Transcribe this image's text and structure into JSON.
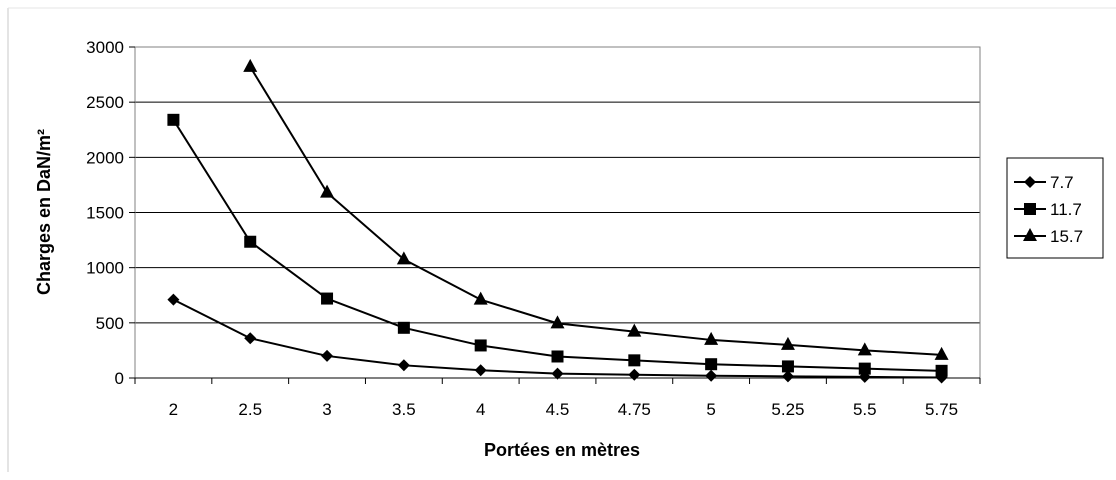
{
  "chart_data": {
    "type": "line",
    "title": "",
    "xlabel": "Portées en mètres",
    "ylabel": "Charges en DaN/m²",
    "categories": [
      "2",
      "2.5",
      "3",
      "3.5",
      "4",
      "4.5",
      "4.75",
      "5",
      "5.25",
      "5.5",
      "5.75"
    ],
    "ylim": [
      0,
      3000
    ],
    "yticks": [
      "0",
      "500",
      "1000",
      "1500",
      "2000",
      "2500",
      "3000"
    ],
    "grid": "horizontal",
    "legend_position": "right",
    "series": [
      {
        "name": "7.7",
        "marker": "diamond",
        "values": [
          710,
          360,
          200,
          115,
          70,
          40,
          30,
          20,
          15,
          10,
          5
        ]
      },
      {
        "name": "11.7",
        "marker": "square",
        "values": [
          2340,
          1235,
          720,
          455,
          295,
          195,
          160,
          125,
          105,
          85,
          65
        ]
      },
      {
        "name": "15.7",
        "marker": "triangle",
        "values": [
          null,
          2820,
          1680,
          1075,
          710,
          495,
          420,
          345,
          300,
          250,
          210
        ]
      }
    ]
  }
}
